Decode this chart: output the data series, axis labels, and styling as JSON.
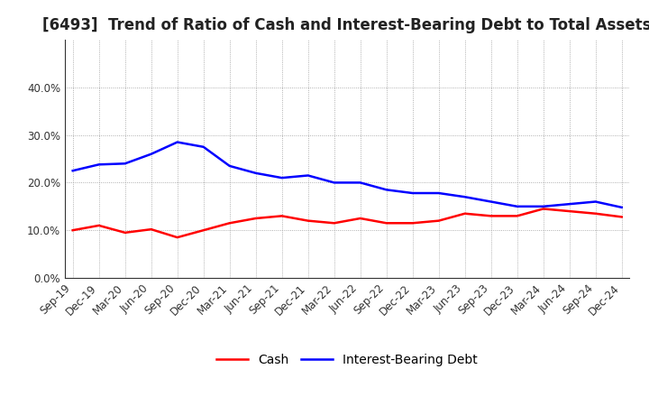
{
  "title": "[6493]  Trend of Ratio of Cash and Interest-Bearing Debt to Total Assets",
  "x_labels": [
    "Sep-19",
    "Dec-19",
    "Mar-20",
    "Jun-20",
    "Sep-20",
    "Dec-20",
    "Mar-21",
    "Jun-21",
    "Sep-21",
    "Dec-21",
    "Mar-22",
    "Jun-22",
    "Sep-22",
    "Dec-22",
    "Mar-23",
    "Jun-23",
    "Sep-23",
    "Dec-23",
    "Mar-24",
    "Jun-24",
    "Sep-24",
    "Dec-24"
  ],
  "cash": [
    0.1,
    0.11,
    0.095,
    0.102,
    0.085,
    0.1,
    0.115,
    0.125,
    0.13,
    0.12,
    0.115,
    0.125,
    0.115,
    0.115,
    0.12,
    0.135,
    0.13,
    0.13,
    0.145,
    0.14,
    0.135,
    0.128
  ],
  "interest_bearing_debt": [
    0.225,
    0.238,
    0.24,
    0.26,
    0.285,
    0.275,
    0.235,
    0.22,
    0.21,
    0.215,
    0.2,
    0.2,
    0.185,
    0.178,
    0.178,
    0.17,
    0.16,
    0.15,
    0.15,
    0.155,
    0.16,
    0.148
  ],
  "cash_color": "#FF0000",
  "debt_color": "#0000FF",
  "ylim": [
    0.0,
    0.5
  ],
  "yticks": [
    0.0,
    0.1,
    0.2,
    0.3,
    0.4
  ],
  "legend_cash": "Cash",
  "legend_debt": "Interest-Bearing Debt",
  "title_fontsize": 12,
  "axis_tick_fontsize": 8.5,
  "legend_fontsize": 10,
  "line_width": 1.8,
  "bg_color": "#FFFFFF",
  "plot_bg_color": "#FFFFFF",
  "grid_color": "#999999",
  "grid_style": ":"
}
